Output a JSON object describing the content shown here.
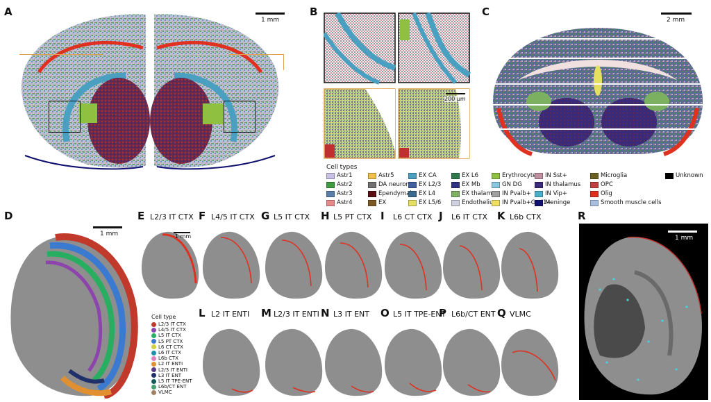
{
  "panel_labels": [
    "A",
    "B",
    "C",
    "D",
    "E",
    "F",
    "G",
    "H",
    "I",
    "J",
    "K",
    "L",
    "M",
    "N",
    "O",
    "P",
    "Q",
    "R"
  ],
  "scalebars": {
    "a": "1 mm",
    "b": "200 μm",
    "c": "2 mm",
    "d": "1 mm",
    "e": "1 mm",
    "r": "1 mm"
  },
  "legend": {
    "title": "Cell types",
    "items": [
      {
        "label": "Astr1",
        "color": "#c9c2e6"
      },
      {
        "label": "Astr2",
        "color": "#3f9b3f"
      },
      {
        "label": "Astr3",
        "color": "#5a7ea8"
      },
      {
        "label": "Astr4",
        "color": "#e88a8a"
      },
      {
        "label": "Astr5",
        "color": "#f0c04a"
      },
      {
        "label": "DA neuron",
        "color": "#707070"
      },
      {
        "label": "Ependymal",
        "color": "#5a1010"
      },
      {
        "label": "EX",
        "color": "#7a5a20"
      },
      {
        "label": "EX CA",
        "color": "#4aa0c0"
      },
      {
        "label": "EX L2/3",
        "color": "#4060a0"
      },
      {
        "label": "EX L4",
        "color": "#3a6a90"
      },
      {
        "label": "EX L5/6",
        "color": "#e6e060"
      },
      {
        "label": "EX L6",
        "color": "#2e7a4e"
      },
      {
        "label": "EX Mb",
        "color": "#303080"
      },
      {
        "label": "EX thalamus",
        "color": "#7ab060"
      },
      {
        "label": "Endothelium",
        "color": "#d0d0e0"
      },
      {
        "label": "Erythrocyte",
        "color": "#90c040"
      },
      {
        "label": "GN DG",
        "color": "#8ac8e0"
      },
      {
        "label": "IN Pvalb+",
        "color": "#a0a0a0"
      },
      {
        "label": "IN Pvalb+Gad1+",
        "color": "#f0e060"
      },
      {
        "label": "IN Sst+",
        "color": "#c090a0"
      },
      {
        "label": "IN thalamus",
        "color": "#3a2a7a"
      },
      {
        "label": "IN Vip+",
        "color": "#4ab0c8"
      },
      {
        "label": "Meninge",
        "color": "#101070"
      },
      {
        "label": "Microglia",
        "color": "#6a6020"
      },
      {
        "label": "OPC",
        "color": "#c04040"
      },
      {
        "label": "Olig",
        "color": "#e03020"
      },
      {
        "label": "Smooth muscle cells",
        "color": "#a8c0e0"
      },
      {
        "label": "Unknown",
        "color": "#000000"
      }
    ]
  },
  "small_panels": [
    {
      "label": "E",
      "title": "L2/3 IT CTX"
    },
    {
      "label": "F",
      "title": "L4/5 IT CTX"
    },
    {
      "label": "G",
      "title": "L5 IT CTX"
    },
    {
      "label": "H",
      "title": "L5 PT CTX"
    },
    {
      "label": "I",
      "title": "L6 CT CTX"
    },
    {
      "label": "J",
      "title": "L6 IT CTX"
    },
    {
      "label": "K",
      "title": "L6b CTX"
    },
    {
      "label": "L",
      "title": "L2  IT ENTI"
    },
    {
      "label": "M",
      "title": "L2/3 IT ENTI"
    },
    {
      "label": "N",
      "title": "L3 IT ENT"
    },
    {
      "label": "O",
      "title": "L5 IT TPE-ENT"
    },
    {
      "label": "P",
      "title": "L6b/CT ENT"
    },
    {
      "label": "Q",
      "title": "VLMC"
    }
  ],
  "d_legend": {
    "title": "Cell type",
    "items": [
      {
        "label": "L2/3 IT CTX",
        "color": "#c0392b"
      },
      {
        "label": "L4/5 IT CTX",
        "color": "#8e44ad"
      },
      {
        "label": "L5 IT CTX",
        "color": "#27ae60"
      },
      {
        "label": "L5 PT CTX",
        "color": "#3a7ad0"
      },
      {
        "label": "L6 CT CTX",
        "color": "#d0d040"
      },
      {
        "label": "L6 IT CTX",
        "color": "#2090b0"
      },
      {
        "label": "L6b CTX",
        "color": "#e080c0"
      },
      {
        "label": "L2  IT ENTI",
        "color": "#e09030"
      },
      {
        "label": "L2/3 IT ENTI",
        "color": "#5a3a8a"
      },
      {
        "label": "L3 IT ENT",
        "color": "#20306a"
      },
      {
        "label": "L5 IT TPE-ENT",
        "color": "#105a5a"
      },
      {
        "label": "L6b/CT ENT",
        "color": "#40a070"
      },
      {
        "label": "VLMC",
        "color": "#a08060"
      }
    ]
  }
}
